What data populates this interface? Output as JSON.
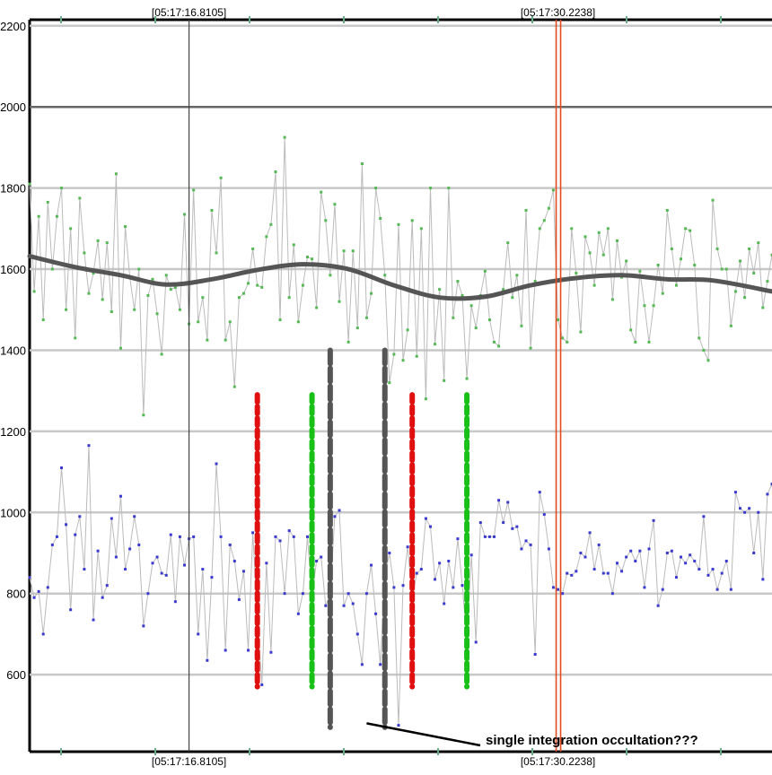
{
  "chart_data": {
    "type": "line",
    "title": "",
    "xlabel": "",
    "ylabel": "",
    "ylim": [
      410,
      2215
    ],
    "xlim": [
      0,
      163
    ],
    "y_ticks": [
      600,
      800,
      1000,
      1200,
      1400,
      1600,
      1800,
      2000,
      2200
    ],
    "grid": true,
    "time_markers": [
      {
        "label": "[05:17:16.8105]",
        "x": 35,
        "style": "cursor"
      },
      {
        "label": "[05:17:30.2238]",
        "x": 116,
        "style": "red-cursor"
      }
    ],
    "region_markers": [
      {
        "x": 50,
        "y_range": [
          570,
          1290
        ],
        "color": "#e01010"
      },
      {
        "x": 62,
        "y_range": [
          570,
          1290
        ],
        "color": "#18c018"
      },
      {
        "x": 66,
        "y_range": [
          470,
          1400
        ],
        "color": "#555555"
      },
      {
        "x": 78,
        "y_range": [
          470,
          1400
        ],
        "color": "#555555"
      },
      {
        "x": 84,
        "y_range": [
          570,
          1290
        ],
        "color": "#e01010"
      },
      {
        "x": 96,
        "y_range": [
          570,
          1290
        ],
        "color": "#18c018"
      }
    ],
    "annotation": {
      "text": "single integration occultation???",
      "x": 74,
      "y": 480
    },
    "series": [
      {
        "color": "#bbbbbb",
        "marker_color": "#55b855",
        "values": [
          1810,
          1545,
          1730,
          1475,
          1765,
          1600,
          1730,
          1800,
          1500,
          1700,
          1430,
          1775,
          1640,
          1540,
          1590,
          1670,
          1525,
          1665,
          1495,
          1835,
          1405,
          1705,
          1580,
          1500,
          1600,
          1240,
          1535,
          1575,
          1490,
          1390,
          1585,
          1550,
          1555,
          1500,
          1735,
          1465,
          1795,
          1470,
          1530,
          1425,
          1745,
          1640,
          1825,
          1425,
          1470,
          1310,
          1530,
          1540,
          1565,
          1650,
          1560,
          1555,
          1680,
          1710,
          1840,
          1475,
          1925,
          1530,
          1660,
          1470,
          1560,
          1630,
          1625,
          1505,
          1790,
          1720,
          1585,
          1760,
          1520,
          1645,
          1420,
          1645,
          1455,
          1860,
          1480,
          1540,
          1800,
          1725,
          1585,
          1320,
          1390,
          1710,
          1375,
          1450,
          1720,
          1385,
          1700,
          1280,
          1800,
          1415,
          1550,
          1325,
          1800,
          1480,
          1570,
          1535,
          1330,
          1510,
          1455,
          1535,
          1595,
          1475,
          1420,
          1410,
          1550,
          1665,
          1530,
          1585,
          1460,
          1745,
          1405,
          1570,
          1700,
          1720,
          1750,
          1795,
          1475,
          1430,
          1420,
          1700,
          1590,
          1445,
          1680,
          1640,
          1560,
          1690,
          1635,
          1700,
          1525,
          1670,
          1580,
          1620,
          1450,
          1420,
          1595,
          1510,
          1420,
          1510,
          1610,
          1540,
          1745,
          1650,
          1560,
          1625,
          1700,
          1695,
          1610,
          1430,
          1400,
          1375,
          1770,
          1650,
          1600,
          1600,
          1460,
          1545,
          1620,
          1530,
          1650,
          1590,
          1665,
          1505,
          1570,
          1635
        ]
      },
      {
        "color": "#bbbbbb",
        "marker_color": "#3a3acc",
        "values": [
          840,
          790,
          805,
          700,
          815,
          920,
          940,
          1110,
          970,
          760,
          945,
          990,
          860,
          1165,
          735,
          905,
          790,
          820,
          985,
          890,
          1040,
          860,
          910,
          990,
          920,
          720,
          800,
          875,
          890,
          850,
          845,
          945,
          780,
          940,
          870,
          935,
          940,
          700,
          860,
          635,
          840,
          1120,
          940,
          660,
          920,
          880,
          785,
          855,
          660,
          950,
          740,
          575,
          875,
          655,
          940,
          930,
          800,
          955,
          940,
          750,
          800,
          940,
          795,
          880,
          890,
          770,
          800,
          990,
          1005,
          770,
          800,
          775,
          700,
          625,
          800,
          870,
          750,
          625,
          845,
          900,
          815,
          475,
          820,
          915,
          790,
          850,
          860,
          985,
          965,
          835,
          875,
          775,
          880,
          815,
          935,
          820,
          690,
          895,
          680,
          975,
          940,
          940,
          940,
          1030,
          975,
          1025,
          960,
          965,
          910,
          930,
          920,
          650,
          1050,
          995,
          910,
          815,
          810,
          800,
          850,
          845,
          855,
          900,
          890,
          950,
          860,
          920,
          850,
          850,
          800,
          875,
          855,
          890,
          905,
          880,
          905,
          815,
          910,
          980,
          770,
          810,
          900,
          905,
          840,
          890,
          875,
          895,
          880,
          860,
          990,
          845,
          860,
          810,
          850,
          880,
          810,
          1050,
          1010,
          1000,
          1010,
          900,
          1000,
          835,
          1045,
          1070,
          935,
          995
        ]
      }
    ],
    "smooth_series": {
      "color": "#555555",
      "x": [
        0,
        10,
        20,
        30,
        40,
        50,
        60,
        70,
        80,
        90,
        100,
        110,
        120,
        130,
        140,
        150,
        163
      ],
      "values": [
        1632,
        1605,
        1585,
        1562,
        1575,
        1598,
        1612,
        1600,
        1560,
        1530,
        1532,
        1560,
        1578,
        1585,
        1575,
        1572,
        1545
      ]
    }
  }
}
